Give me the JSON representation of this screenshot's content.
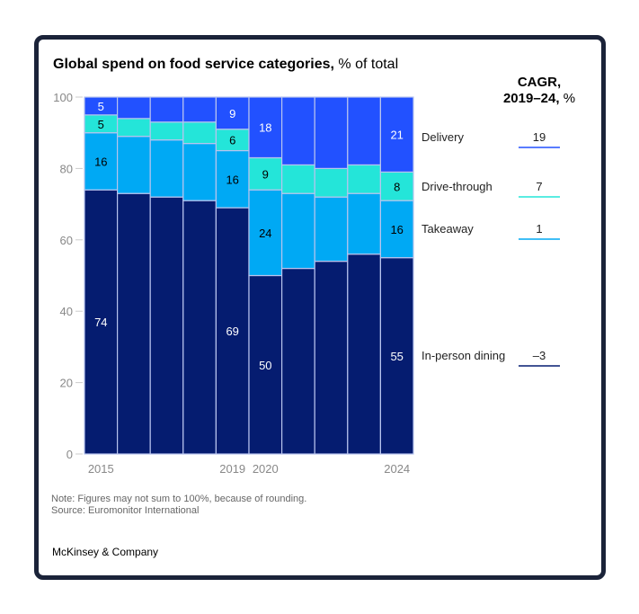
{
  "chart_data": {
    "type": "bar",
    "stacked": true,
    "title": "Global spend on food service categories,",
    "title_unit": "% of total",
    "categories": [
      "2015",
      "2016",
      "2017",
      "2018",
      "2019",
      "2020",
      "2021",
      "2022",
      "2023",
      "2024"
    ],
    "x_tick_labels": [
      "2015",
      "",
      "",
      "",
      "2019",
      "2020",
      "",
      "",
      "",
      "2024"
    ],
    "labeled_categories": [
      "2015",
      "2019",
      "2020",
      "2024"
    ],
    "ylim": [
      0,
      100
    ],
    "y_ticks": [
      0,
      20,
      40,
      60,
      80,
      100
    ],
    "grid": false,
    "legend_placement": "right",
    "series": [
      {
        "name": "In-person dining",
        "color": "#051c70",
        "text_color": "#ffffff",
        "values": [
          74,
          73,
          72,
          71,
          69,
          50,
          52,
          54,
          56,
          55
        ]
      },
      {
        "name": "Takeaway",
        "color": "#00a9f4",
        "text_color": "#000000",
        "values": [
          16,
          16,
          16,
          16,
          16,
          24,
          21,
          18,
          17,
          16
        ]
      },
      {
        "name": "Drive-through",
        "color": "#24e5d9",
        "text_color": "#000000",
        "values": [
          5,
          5,
          5,
          6,
          6,
          9,
          8,
          8,
          8,
          8
        ]
      },
      {
        "name": "Delivery",
        "color": "#2251ff",
        "text_color": "#ffffff",
        "values": [
          5,
          6,
          7,
          8,
          9,
          18,
          19,
          19,
          20,
          21
        ]
      }
    ],
    "cagr": {
      "header_line1": "CAGR,",
      "header_line2": "2019–24,",
      "header_unit": "%",
      "values": {
        "Delivery": "19",
        "Drive-through": "7",
        "Takeaway": "1",
        "In-person dining": "–3"
      }
    }
  },
  "footer": {
    "note": "Note: Figures may not sum to 100%, because of rounding.",
    "source": "Source: Euromonitor International",
    "brand": "McKinsey & Company"
  }
}
